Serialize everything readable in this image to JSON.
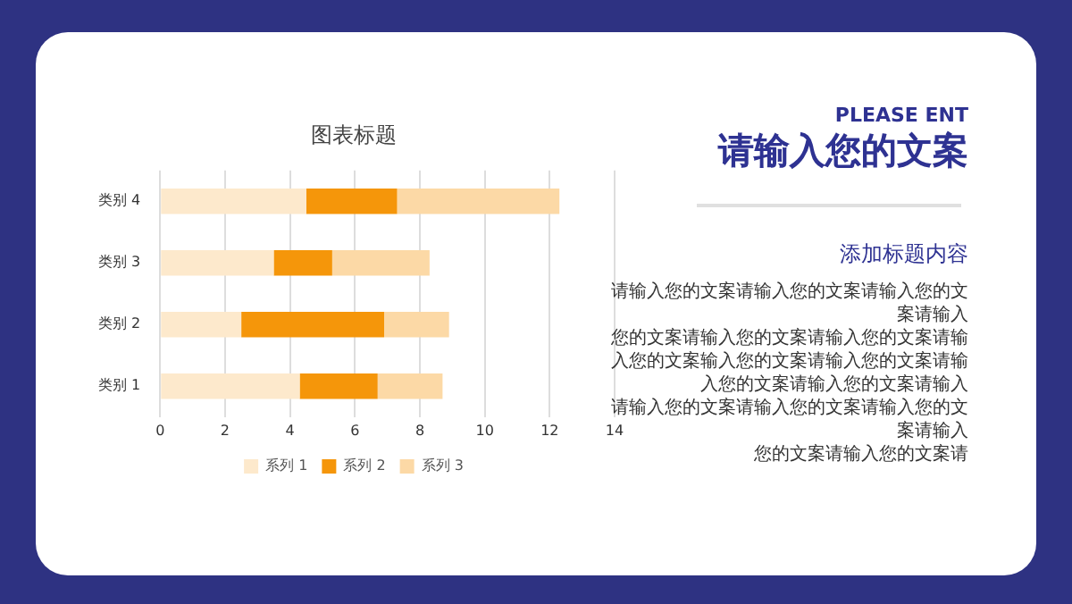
{
  "chart_data": {
    "type": "bar",
    "orientation": "horizontal",
    "stacked": true,
    "title": "图表标题",
    "categories": [
      "类别 4",
      "类别 3",
      "类别 2",
      "类别 1"
    ],
    "series": [
      {
        "name": "系列 1",
        "color": "#fde9cc",
        "values": [
          4.5,
          3.5,
          2.5,
          4.3
        ]
      },
      {
        "name": "系列 2",
        "color": "#f5960a",
        "values": [
          2.8,
          1.8,
          4.4,
          2.4
        ]
      },
      {
        "name": "系列 3",
        "color": "#fcd9a6",
        "values": [
          5.0,
          3.0,
          2.0,
          2.0
        ]
      }
    ],
    "xlim": [
      0,
      14
    ],
    "xticks": [
      0,
      2,
      4,
      6,
      8,
      10,
      12,
      14
    ],
    "grid": "x",
    "legend": "bottom",
    "annotations": [
      "PLEASE ENT",
      "请输入您的文案",
      "添加标题内容",
      "请输入您的文案请输入您的文案请输入您的文",
      "案请输入",
      "您的文案请输入您的文案请输入您的文案请输",
      "入您的文案输入您的文案请输入您的文案请输",
      "入您的文案请输入您的文案请输入",
      "请输入您的文案请输入您的文案请输入您的文",
      "案请输入",
      "您的文案请输入您的文案请"
    ]
  }
}
